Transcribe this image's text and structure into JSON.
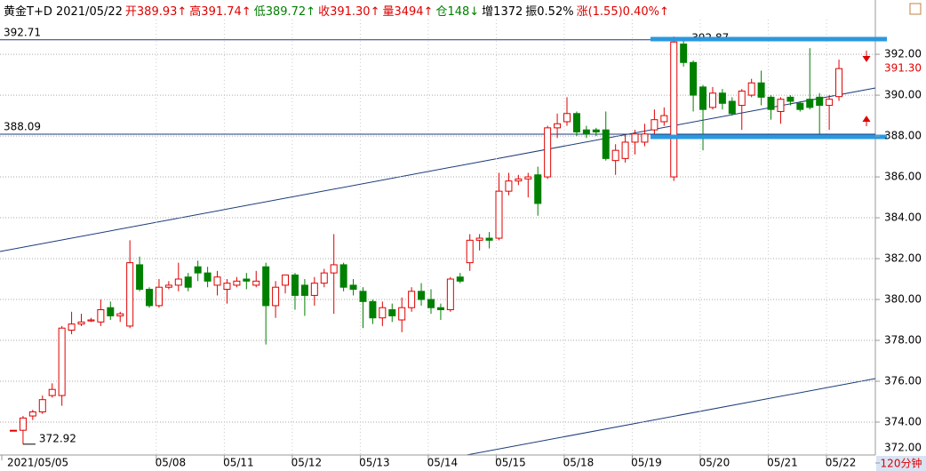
{
  "chart_data": {
    "type": "candlestick",
    "title_items": [
      {
        "text": "黄金T+D 2021/05/22",
        "color": "#000000"
      },
      {
        "text": "开389.93↑",
        "color": "#e00000"
      },
      {
        "text": "高391.74↑",
        "color": "#e00000"
      },
      {
        "text": "低389.72↑",
        "color": "#008000"
      },
      {
        "text": "收391.30↑",
        "color": "#e00000"
      },
      {
        "text": "量3494↑",
        "color": "#e00000"
      },
      {
        "text": "仓148↓",
        "color": "#008000"
      },
      {
        "text": "增1372",
        "color": "#000000"
      },
      {
        "text": "振0.52%",
        "color": "#000000"
      },
      {
        "text": "涨(1.55)0.40%↑",
        "color": "#e00000"
      }
    ],
    "period_label": "120分钟",
    "categories": [
      "2021/05/05",
      null,
      null,
      null,
      null,
      null,
      null,
      null,
      null,
      null,
      null,
      null,
      null,
      null,
      null,
      null,
      "05/08",
      null,
      null,
      null,
      null,
      null,
      null,
      "05/11",
      null,
      null,
      null,
      null,
      null,
      null,
      "05/12",
      null,
      null,
      null,
      null,
      null,
      null,
      "05/13",
      null,
      null,
      null,
      null,
      null,
      null,
      "05/14",
      null,
      null,
      null,
      null,
      null,
      null,
      "05/15",
      null,
      null,
      null,
      null,
      null,
      null,
      "05/18",
      null,
      null,
      null,
      null,
      null,
      null,
      "05/19",
      null,
      null,
      null,
      null,
      null,
      null,
      "05/20",
      null,
      null,
      null,
      null,
      null,
      null,
      "05/21",
      null,
      null,
      null,
      null,
      null,
      "05/22"
    ],
    "open": [
      373.6,
      373.6,
      374.3,
      374.5,
      375.3,
      375.3,
      378.5,
      378.8,
      378.95,
      378.9,
      379.6,
      379.2,
      378.7,
      381.7,
      380.5,
      379.7,
      380.6,
      380.7,
      381.1,
      381.6,
      381.3,
      380.7,
      380.5,
      380.7,
      381.0,
      380.7,
      381.6,
      379.7,
      380.7,
      381.2,
      380.7,
      380.2,
      380.8,
      381.3,
      381.7,
      380.7,
      380.4,
      379.9,
      379.1,
      379.5,
      379.0,
      379.6,
      380.4,
      380.0,
      379.6,
      379.5,
      381.1,
      381.8,
      382.9,
      383.0,
      383.0,
      385.3,
      385.8,
      385.9,
      386.1,
      386.0,
      388.4,
      388.7,
      389.1,
      388.3,
      388.3,
      388.3,
      386.8,
      386.9,
      387.7,
      387.7,
      388.3,
      388.7,
      386.0,
      392.5,
      391.6,
      390.4,
      389.4,
      390.1,
      389.7,
      389.5,
      390.0,
      390.6,
      389.9,
      389.2,
      389.9,
      389.6,
      389.8,
      389.9,
      389.5,
      389.93
    ],
    "high": [
      373.6,
      374.3,
      374.6,
      375.3,
      375.9,
      378.7,
      379.4,
      379.3,
      379.1,
      380.0,
      379.9,
      379.4,
      382.9,
      382.1,
      380.6,
      381.0,
      380.9,
      381.8,
      381.3,
      381.9,
      381.6,
      381.4,
      381.0,
      381.1,
      381.3,
      381.4,
      381.8,
      380.9,
      381.2,
      381.3,
      381.0,
      381.1,
      381.5,
      383.2,
      381.8,
      381.0,
      380.6,
      380.0,
      379.9,
      379.8,
      380.1,
      380.6,
      380.8,
      380.5,
      379.8,
      381.1,
      381.3,
      383.2,
      383.2,
      383.3,
      386.2,
      386.2,
      386.1,
      386.2,
      386.5,
      388.5,
      389.1,
      389.9,
      389.2,
      388.5,
      388.4,
      389.2,
      387.6,
      388.1,
      388.3,
      388.6,
      389.3,
      389.4,
      392.87,
      392.8,
      391.7,
      390.5,
      390.4,
      390.3,
      389.9,
      390.3,
      390.8,
      391.2,
      390.0,
      389.9,
      390.0,
      389.7,
      392.3,
      390.1,
      390.0,
      391.74
    ],
    "low": [
      373.6,
      372.92,
      374.1,
      374.4,
      375.2,
      374.8,
      378.3,
      378.7,
      378.9,
      378.7,
      379.0,
      378.9,
      378.6,
      380.4,
      379.6,
      379.6,
      380.5,
      380.4,
      380.4,
      380.9,
      380.6,
      380.2,
      379.8,
      380.6,
      380.5,
      380.6,
      377.8,
      379.1,
      380.3,
      379.5,
      379.2,
      379.7,
      380.6,
      379.3,
      380.4,
      380.2,
      378.6,
      378.8,
      378.7,
      378.9,
      378.4,
      379.4,
      379.7,
      379.3,
      379.0,
      379.4,
      380.8,
      381.4,
      382.4,
      382.5,
      382.9,
      385.1,
      385.6,
      385.0,
      384.1,
      385.9,
      387.9,
      388.5,
      388.0,
      387.9,
      388.0,
      386.8,
      386.1,
      386.7,
      387.1,
      387.5,
      388.1,
      388.5,
      385.8,
      391.4,
      389.2,
      387.3,
      389.3,
      389.3,
      389.0,
      388.3,
      389.9,
      389.5,
      388.8,
      388.6,
      389.5,
      389.2,
      389.3,
      388.1,
      388.3,
      389.72
    ],
    "close": [
      373.6,
      374.2,
      374.5,
      375.1,
      375.6,
      378.6,
      378.8,
      378.9,
      379.0,
      379.5,
      379.2,
      379.3,
      381.8,
      380.5,
      379.7,
      380.6,
      380.7,
      381.0,
      380.6,
      381.3,
      380.9,
      381.1,
      380.8,
      380.9,
      380.9,
      380.9,
      379.7,
      380.6,
      381.2,
      380.2,
      380.2,
      380.8,
      381.3,
      381.7,
      380.6,
      380.5,
      379.9,
      379.1,
      379.6,
      379.2,
      379.6,
      380.4,
      380.0,
      379.6,
      379.5,
      381.0,
      380.9,
      382.9,
      383.0,
      382.9,
      385.3,
      385.8,
      385.9,
      386.0,
      384.7,
      388.4,
      388.6,
      389.1,
      388.2,
      388.1,
      388.2,
      386.9,
      387.3,
      387.7,
      388.1,
      388.1,
      388.8,
      389.0,
      392.6,
      391.6,
      390.0,
      389.3,
      390.1,
      389.6,
      389.1,
      390.2,
      390.6,
      389.9,
      389.3,
      389.8,
      389.7,
      389.3,
      389.4,
      389.5,
      389.8,
      391.3
    ],
    "annotations": [
      {
        "text": "392.87",
        "index": 68
      },
      {
        "text": "372.92",
        "index": 1
      }
    ],
    "last_price_label": "391.30",
    "hlines": [
      392.71,
      388.09
    ],
    "up_color": "#e00000",
    "down_color": "#008000",
    "ylim": [
      372.39,
      393.7
    ],
    "yticks": [
      {
        "value": 372,
        "label": "372.00"
      },
      {
        "value": 374,
        "label": "374.00"
      },
      {
        "value": 376,
        "label": "376.00"
      },
      {
        "value": 378,
        "label": "378.00"
      },
      {
        "value": 380,
        "label": "380.00"
      },
      {
        "value": 382,
        "label": "382.00"
      },
      {
        "value": 384,
        "label": "384.00"
      },
      {
        "value": 386,
        "label": "386.00"
      },
      {
        "value": 388,
        "label": "388.00"
      },
      {
        "value": 390,
        "label": "390.00"
      },
      {
        "value": 392,
        "label": "392.00"
      }
    ],
    "grid": true
  }
}
